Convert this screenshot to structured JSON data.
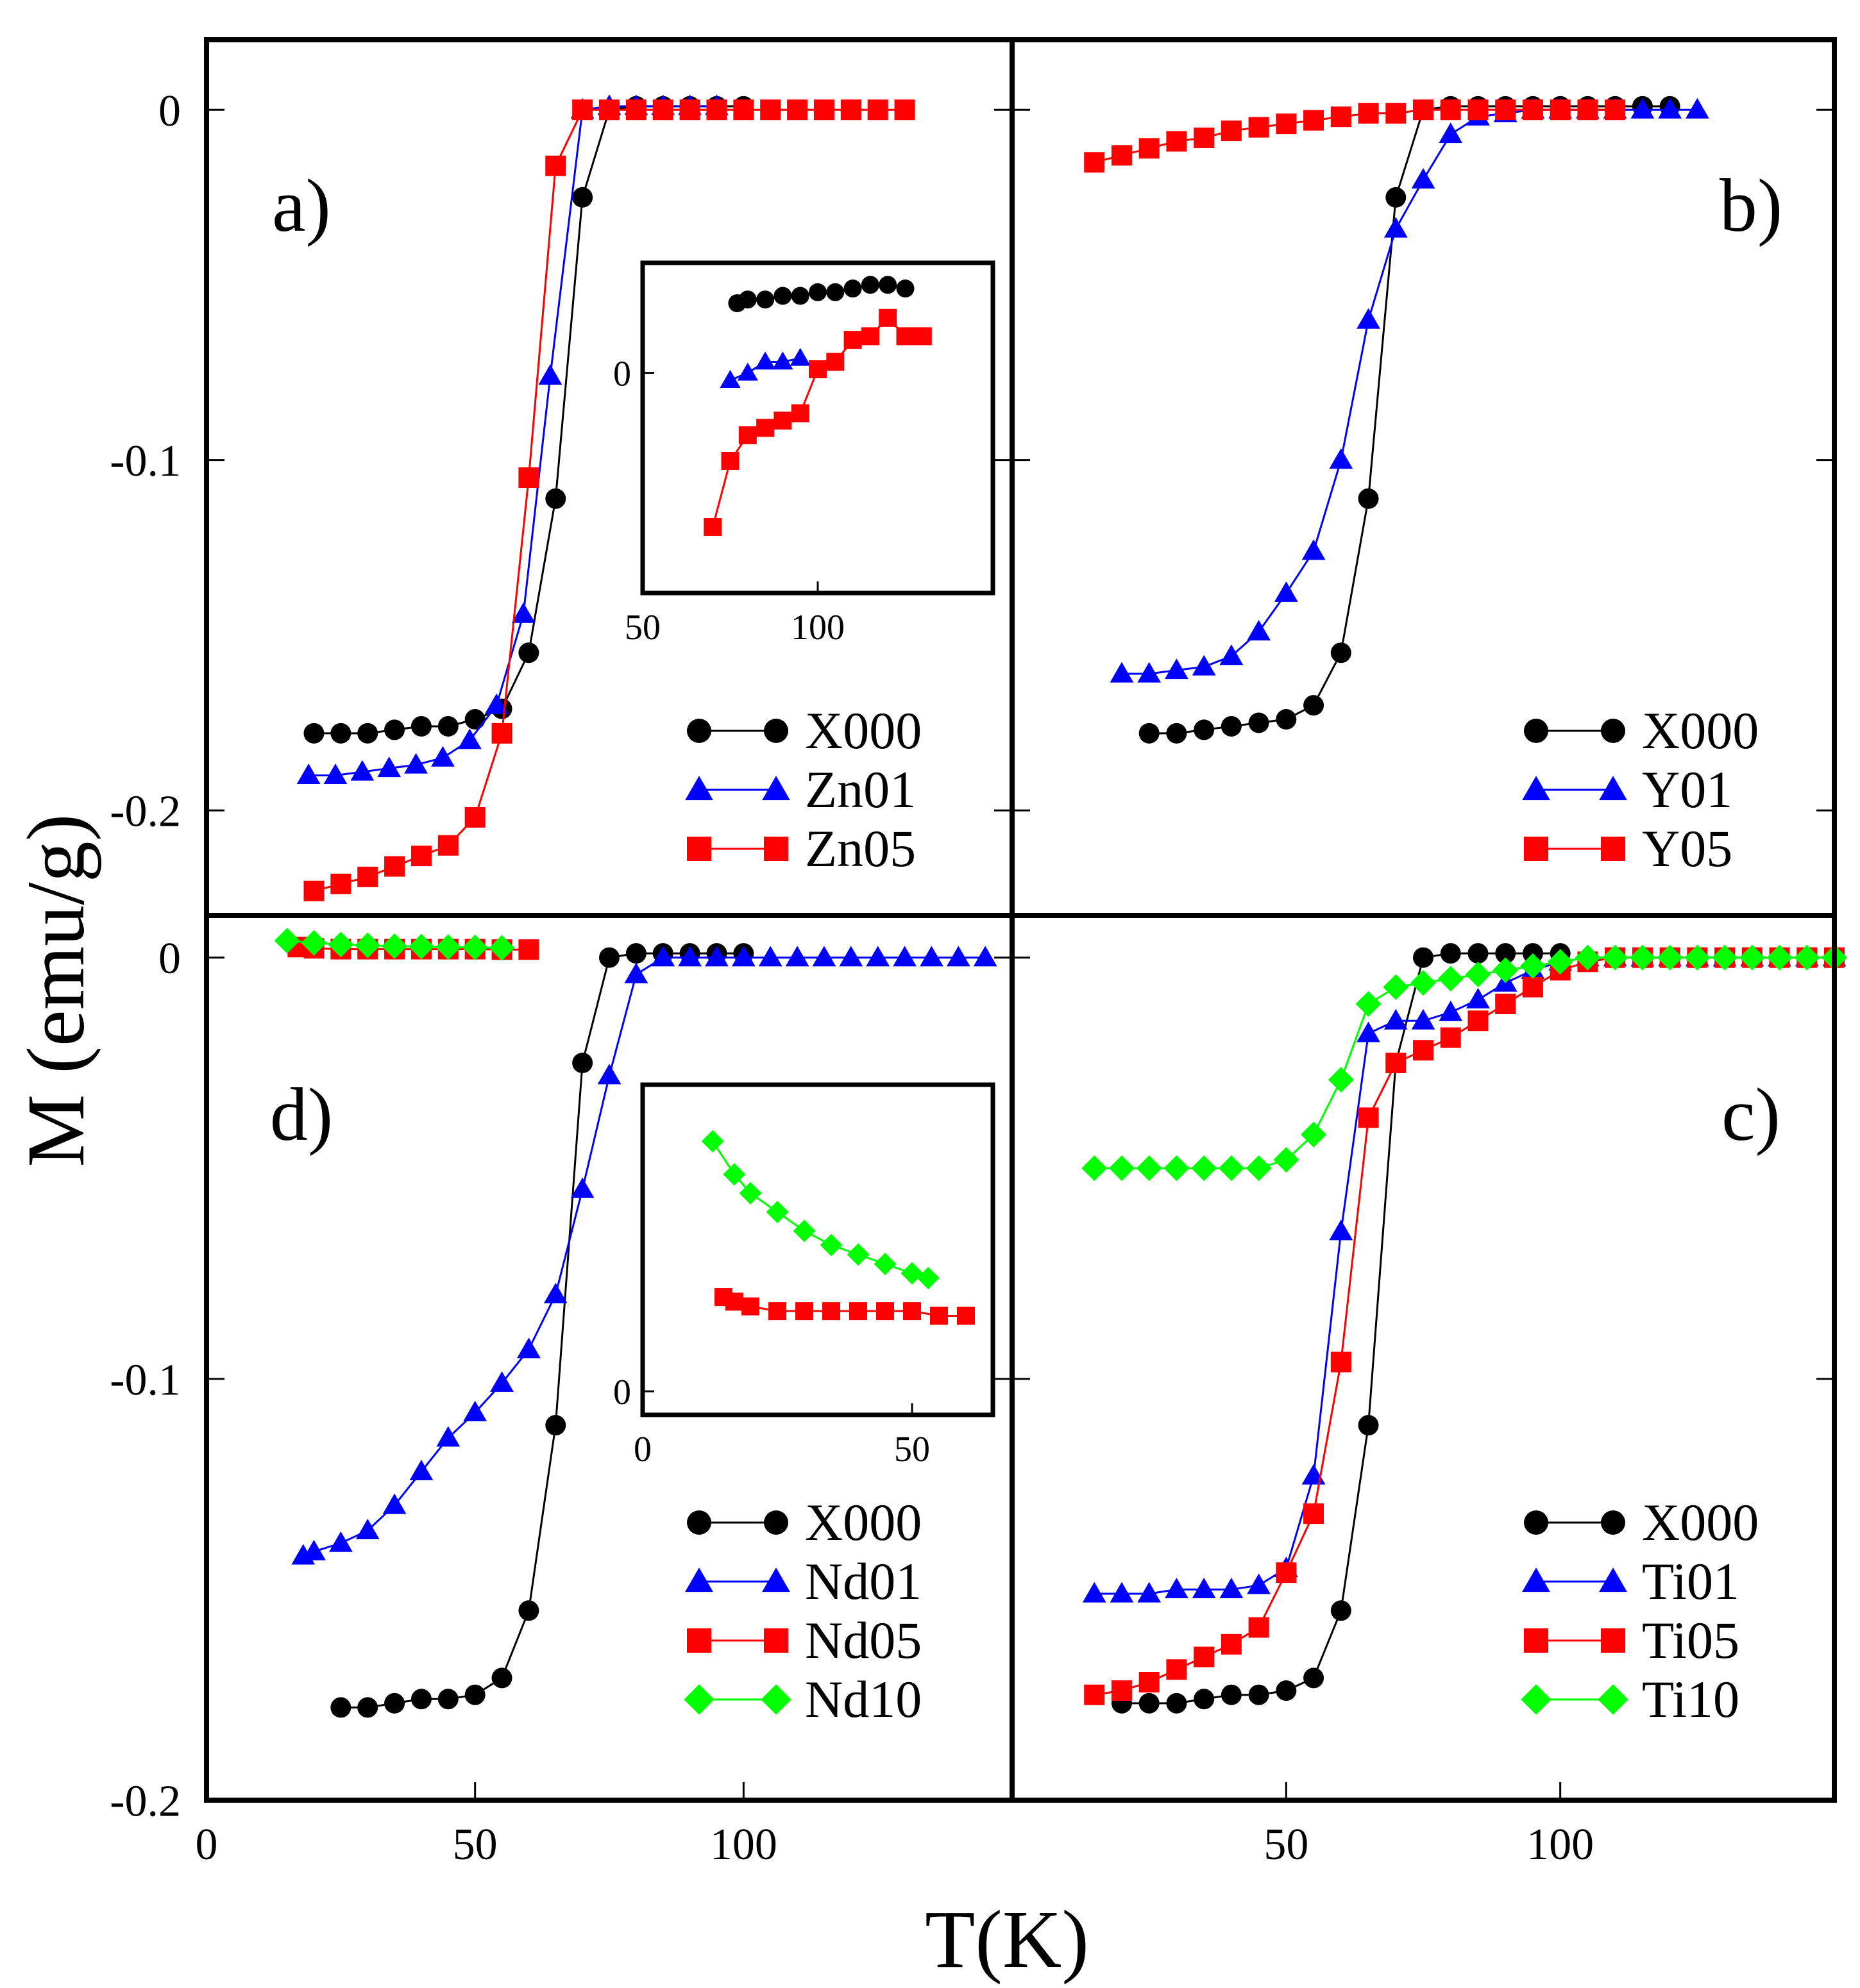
{
  "figure": {
    "ylabel": "M (emu/g)",
    "xlabel": "T(K)"
  },
  "chart_data": [
    {
      "id": "a",
      "type": "line",
      "panel_label": "a)",
      "xlim": [
        0,
        150
      ],
      "ylim": [
        -0.23,
        0.02
      ],
      "xticks": [],
      "yticks": [
        0,
        -0.1,
        -0.2
      ],
      "ytick_labels": [
        "0",
        "-0.1",
        "-0.2"
      ],
      "series": [
        {
          "name": "X000",
          "color": "#000000",
          "marker": "circle",
          "x": [
            20,
            25,
            30,
            35,
            40,
            45,
            50,
            55,
            60,
            65,
            70,
            75,
            80,
            85,
            90,
            95,
            100
          ],
          "y": [
            -0.178,
            -0.178,
            -0.178,
            -0.177,
            -0.176,
            -0.176,
            -0.174,
            -0.171,
            -0.155,
            -0.111,
            -0.025,
            0.0,
            0.001,
            0.001,
            0.001,
            0.001,
            0.001
          ]
        },
        {
          "name": "Zn01",
          "color": "#0000ff",
          "marker": "triangle",
          "x": [
            19,
            24,
            29,
            34,
            39,
            44,
            49,
            54,
            59,
            64,
            70,
            75,
            80,
            85,
            90,
            95
          ],
          "y": [
            -0.19,
            -0.19,
            -0.189,
            -0.188,
            -0.187,
            -0.185,
            -0.18,
            -0.17,
            -0.144,
            -0.076,
            0.0,
            0.001,
            0.001,
            0.001,
            0.001,
            0.001
          ]
        },
        {
          "name": "Zn05",
          "color": "#ff0000",
          "marker": "square",
          "x": [
            20,
            25,
            30,
            35,
            40,
            45,
            50,
            55,
            60,
            65,
            70,
            75,
            80,
            85,
            90,
            95,
            100,
            105,
            110,
            115,
            120,
            125,
            130
          ],
          "y": [
            -0.223,
            -0.221,
            -0.219,
            -0.216,
            -0.213,
            -0.21,
            -0.202,
            -0.178,
            -0.105,
            -0.016,
            0.0,
            0.0,
            0.0,
            0.0,
            0.0,
            0.0,
            0.0,
            0.0,
            0.0,
            0.0,
            0.0,
            0.0,
            0.0
          ]
        }
      ]
    },
    {
      "id": "a-inset",
      "type": "line",
      "xlim": [
        50,
        150
      ],
      "ylim": [
        -0.006,
        0.003
      ],
      "xticks": [
        50,
        100
      ],
      "yticks": [
        0
      ],
      "ytick_labels": [
        "0"
      ],
      "series": [
        {
          "name": "X000",
          "color": "#000000",
          "marker": "circle",
          "x": [
            77,
            80,
            85,
            90,
            95,
            100,
            105,
            110,
            115,
            120,
            125
          ],
          "y": [
            0.0019,
            0.002,
            0.002,
            0.0021,
            0.0021,
            0.0022,
            0.0022,
            0.0023,
            0.0024,
            0.0024,
            0.0023
          ]
        },
        {
          "name": "Zn01",
          "color": "#0000ff",
          "marker": "triangle",
          "x": [
            75,
            80,
            85,
            90,
            95
          ],
          "y": [
            -0.0002,
            0.0,
            0.0003,
            0.0003,
            0.0004
          ]
        },
        {
          "name": "Zn05",
          "color": "#ff0000",
          "marker": "square",
          "x": [
            70,
            75,
            80,
            85,
            90,
            95,
            100,
            105,
            110,
            115,
            120,
            125,
            130
          ],
          "y": [
            -0.0042,
            -0.0024,
            -0.0017,
            -0.0015,
            -0.0013,
            -0.0011,
            0.0001,
            0.0003,
            0.0009,
            0.001,
            0.0015,
            0.001,
            0.001
          ]
        }
      ]
    },
    {
      "id": "b",
      "type": "line",
      "panel_label": "b)",
      "xlim": [
        0,
        150
      ],
      "ylim": [
        -0.23,
        0.02
      ],
      "xticks": [],
      "yticks": [
        0,
        -0.1,
        -0.2
      ],
      "ytick_labels": [],
      "series": [
        {
          "name": "X000",
          "color": "#000000",
          "marker": "circle",
          "x": [
            25,
            30,
            35,
            40,
            45,
            50,
            55,
            60,
            65,
            70,
            75,
            80,
            85,
            90,
            95,
            100,
            105,
            110,
            115,
            120
          ],
          "y": [
            -0.178,
            -0.178,
            -0.177,
            -0.176,
            -0.175,
            -0.174,
            -0.17,
            -0.155,
            -0.111,
            -0.025,
            0.0,
            0.001,
            0.001,
            0.001,
            0.001,
            0.001,
            0.001,
            0.001,
            0.001,
            0.001
          ]
        },
        {
          "name": "Y01",
          "color": "#0000ff",
          "marker": "triangle",
          "x": [
            20,
            25,
            30,
            35,
            40,
            45,
            50,
            55,
            60,
            65,
            70,
            75,
            80,
            85,
            90,
            95,
            100,
            105,
            110,
            115,
            120,
            125
          ],
          "y": [
            -0.161,
            -0.161,
            -0.16,
            -0.159,
            -0.156,
            -0.149,
            -0.138,
            -0.126,
            -0.1,
            -0.06,
            -0.034,
            -0.02,
            -0.007,
            -0.002,
            -0.001,
            0.0,
            0.0,
            0.0,
            0.0,
            0.0,
            0.0,
            0.0
          ]
        },
        {
          "name": "Y05",
          "color": "#ff0000",
          "marker": "square",
          "x": [
            15,
            20,
            25,
            30,
            35,
            40,
            45,
            50,
            55,
            60,
            65,
            70,
            75,
            80,
            85,
            90,
            95,
            100,
            105,
            110
          ],
          "y": [
            -0.015,
            -0.013,
            -0.011,
            -0.009,
            -0.008,
            -0.006,
            -0.005,
            -0.004,
            -0.003,
            -0.002,
            -0.001,
            -0.001,
            0.0,
            0.0,
            0.0,
            0.0,
            0.0,
            0.0,
            0.0,
            0.0
          ]
        }
      ]
    },
    {
      "id": "d",
      "type": "line",
      "panel_label": "d)",
      "xlim": [
        0,
        150
      ],
      "ylim": [
        -0.2,
        0.01
      ],
      "xticks": [
        0,
        50,
        100
      ],
      "yticks": [
        0,
        -0.1,
        -0.2
      ],
      "ytick_labels": [
        "0",
        "-0.1",
        "-0.2"
      ],
      "series": [
        {
          "name": "X000",
          "color": "#000000",
          "marker": "circle",
          "x": [
            25,
            30,
            35,
            40,
            45,
            50,
            55,
            60,
            65,
            70,
            75,
            80,
            85,
            90,
            95,
            100
          ],
          "y": [
            -0.178,
            -0.178,
            -0.177,
            -0.176,
            -0.176,
            -0.175,
            -0.171,
            -0.155,
            -0.111,
            -0.025,
            0.0,
            0.001,
            0.001,
            0.001,
            0.001,
            0.001
          ]
        },
        {
          "name": "Nd01",
          "color": "#0000ff",
          "marker": "triangle",
          "x": [
            18,
            20,
            25,
            30,
            35,
            40,
            45,
            50,
            55,
            60,
            65,
            70,
            75,
            80,
            85,
            90,
            95,
            100,
            105,
            110,
            115,
            120,
            125,
            130,
            135,
            140,
            145
          ],
          "y": [
            -0.142,
            -0.141,
            -0.139,
            -0.136,
            -0.13,
            -0.122,
            -0.114,
            -0.108,
            -0.101,
            -0.093,
            -0.08,
            -0.055,
            -0.028,
            -0.004,
            0.0,
            0.0,
            0.0,
            0.0,
            0.0,
            0.0,
            0.0,
            0.0,
            0.0,
            0.0,
            0.0,
            0.0,
            0.0
          ]
        },
        {
          "name": "Nd05",
          "color": "#ff0000",
          "marker": "square",
          "x": [
            17,
            20,
            25,
            30,
            35,
            40,
            45,
            50,
            55,
            60
          ],
          "y": [
            0.0025,
            0.0022,
            0.002,
            0.002,
            0.002,
            0.002,
            0.002,
            0.002,
            0.0019,
            0.0019
          ]
        },
        {
          "name": "Nd10",
          "color": "#00ff00",
          "marker": "diamond",
          "x": [
            15,
            20,
            25,
            30,
            35,
            40,
            45,
            50,
            55
          ],
          "y": [
            0.004,
            0.0035,
            0.0031,
            0.0029,
            0.0027,
            0.0026,
            0.0025,
            0.0024,
            0.0023
          ]
        }
      ]
    },
    {
      "id": "d-inset",
      "type": "line",
      "xlim": [
        0,
        65
      ],
      "ylim": [
        -0.0005,
        0.0065
      ],
      "xticks": [
        0,
        50
      ],
      "yticks": [
        0
      ],
      "ytick_labels": [
        "0"
      ],
      "series": [
        {
          "name": "Nd05",
          "color": "#ff0000",
          "marker": "square",
          "x": [
            15,
            17,
            20,
            25,
            30,
            35,
            40,
            45,
            50,
            55,
            60
          ],
          "y": [
            0.002,
            0.0019,
            0.0018,
            0.0017,
            0.0017,
            0.0017,
            0.0017,
            0.0017,
            0.0017,
            0.0016,
            0.0016
          ]
        },
        {
          "name": "Nd10",
          "color": "#00ff00",
          "marker": "diamond",
          "x": [
            13,
            17,
            20,
            25,
            30,
            35,
            40,
            45,
            50,
            53
          ],
          "y": [
            0.0053,
            0.0046,
            0.0042,
            0.0038,
            0.0034,
            0.0031,
            0.0029,
            0.0027,
            0.0025,
            0.0024
          ]
        }
      ]
    },
    {
      "id": "c",
      "type": "line",
      "panel_label": "c)",
      "xlim": [
        0,
        150
      ],
      "ylim": [
        -0.2,
        0.01
      ],
      "xticks": [
        50,
        100
      ],
      "yticks": [
        0,
        -0.1,
        -0.2
      ],
      "ytick_labels": [],
      "series": [
        {
          "name": "X000",
          "color": "#000000",
          "marker": "circle",
          "x": [
            20,
            25,
            30,
            35,
            40,
            45,
            50,
            55,
            60,
            65,
            70,
            75,
            80,
            85,
            90,
            95,
            100
          ],
          "y": [
            -0.177,
            -0.177,
            -0.177,
            -0.176,
            -0.175,
            -0.175,
            -0.174,
            -0.171,
            -0.155,
            -0.111,
            -0.025,
            0.0,
            0.001,
            0.001,
            0.001,
            0.001,
            0.001
          ]
        },
        {
          "name": "Ti01",
          "color": "#0000ff",
          "marker": "triangle",
          "x": [
            15,
            20,
            25,
            30,
            35,
            40,
            45,
            50,
            55,
            60,
            65,
            70,
            75,
            80,
            85,
            90,
            95,
            100,
            105,
            110,
            115,
            120,
            125,
            130,
            135,
            140,
            145,
            150
          ],
          "y": [
            -0.151,
            -0.151,
            -0.151,
            -0.15,
            -0.15,
            -0.15,
            -0.149,
            -0.145,
            -0.123,
            -0.065,
            -0.018,
            -0.015,
            -0.015,
            -0.013,
            -0.01,
            -0.006,
            -0.003,
            -0.001,
            0.0,
            0.0,
            0.0,
            0.0,
            0.0,
            0.0,
            0.0,
            0.0,
            0.0,
            0.0
          ]
        },
        {
          "name": "Ti05",
          "color": "#ff0000",
          "marker": "square",
          "x": [
            15,
            20,
            25,
            30,
            35,
            40,
            45,
            50,
            55,
            60,
            65,
            70,
            75,
            80,
            85,
            90,
            95,
            100,
            105,
            110,
            115,
            120,
            125,
            130,
            135,
            140,
            145,
            150
          ],
          "y": [
            -0.175,
            -0.174,
            -0.172,
            -0.169,
            -0.166,
            -0.163,
            -0.159,
            -0.146,
            -0.132,
            -0.096,
            -0.038,
            -0.025,
            -0.022,
            -0.019,
            -0.015,
            -0.011,
            -0.007,
            -0.003,
            -0.001,
            0.0,
            0.0,
            0.0,
            0.0,
            0.0,
            0.0,
            0.0,
            0.0,
            0.0
          ]
        },
        {
          "name": "Ti10",
          "color": "#00ff00",
          "marker": "diamond",
          "x": [
            15,
            20,
            25,
            30,
            35,
            40,
            45,
            50,
            55,
            60,
            65,
            70,
            75,
            80,
            85,
            90,
            95,
            100,
            105,
            110,
            115,
            120,
            125,
            130,
            135,
            140,
            145,
            150
          ],
          "y": [
            -0.05,
            -0.05,
            -0.05,
            -0.05,
            -0.05,
            -0.05,
            -0.05,
            -0.048,
            -0.042,
            -0.029,
            -0.011,
            -0.007,
            -0.006,
            -0.005,
            -0.004,
            -0.003,
            -0.002,
            -0.001,
            0.0,
            0.0,
            0.0,
            0.0,
            0.0,
            0.0,
            0.0,
            0.0,
            0.0,
            0.0
          ]
        }
      ]
    }
  ]
}
